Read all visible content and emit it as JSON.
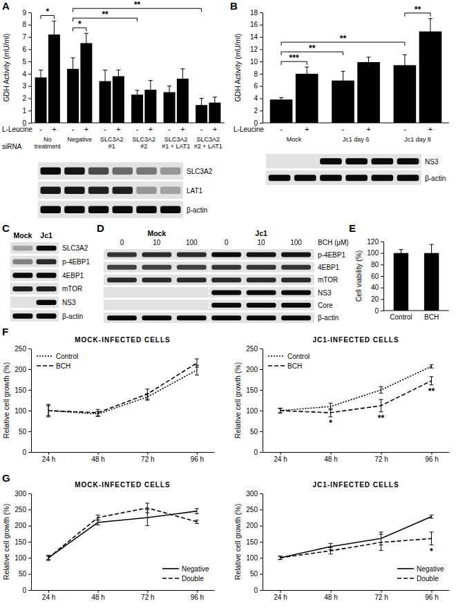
{
  "panel_labels": [
    "A",
    "B",
    "C",
    "D",
    "E",
    "F",
    "G"
  ],
  "chart_data": [
    {
      "type": "bar",
      "y_label": "GDH Activity (mU/ml)",
      "categories": [
        "-",
        "+",
        "-",
        "+",
        "-",
        "+",
        "-",
        "+",
        "-",
        "+",
        "-",
        "+"
      ],
      "category_row_label": "L-Leucine",
      "groups": [
        "No treatment",
        "Negative",
        "SLC3A2 #1",
        "SLC3A2 #2",
        "SLC3A2 #1 + LAT1",
        "SLC3A2 #2 + LAT1"
      ],
      "group_row_label": "siRNA",
      "series": [
        {
          "color": "#000000",
          "values": [
            3.7,
            7.2,
            4.4,
            6.5,
            3.4,
            3.8,
            2.3,
            2.7,
            2.5,
            3.6,
            1.45,
            1.65
          ],
          "errors": [
            0.6,
            1.1,
            0.9,
            0.8,
            0.9,
            0.5,
            0.35,
            0.75,
            0.5,
            0.8,
            0.55,
            0.45
          ]
        }
      ],
      "ylim": [
        0,
        9
      ],
      "yticks": [
        0,
        1,
        2,
        3,
        4,
        5,
        6,
        7,
        8,
        9
      ],
      "significance": [
        {
          "text": "*",
          "from": 0,
          "to": 1
        },
        {
          "text": "*",
          "from": 2,
          "to": 3
        },
        {
          "text": "**",
          "from": 2,
          "to": 6
        },
        {
          "text": "**",
          "from": 2,
          "to": 10
        }
      ]
    },
    {
      "type": "bar",
      "y_label": "GDH Activity (mU/ml)",
      "categories": [
        "-",
        "+",
        "-",
        "+",
        "-",
        "+"
      ],
      "category_row_label": "L-Leucine",
      "groups": [
        "Mock",
        "Jc1 day 6",
        "Jc1 day 8"
      ],
      "series": [
        {
          "color": "#000000",
          "values": [
            3.8,
            8.0,
            6.9,
            9.9,
            9.4,
            14.9
          ],
          "errors": [
            0.3,
            1.1,
            1.5,
            0.8,
            1.7,
            2.1
          ]
        }
      ],
      "ylim": [
        0,
        18
      ],
      "yticks": [
        0,
        2,
        4,
        6,
        8,
        10,
        12,
        14,
        16,
        18
      ],
      "significance": [
        {
          "text": "***",
          "from": 0,
          "to": 1
        },
        {
          "text": "**",
          "from": 0,
          "to": 2
        },
        {
          "text": "**",
          "from": 0,
          "to": 4
        },
        {
          "text": "**",
          "from": 4,
          "to": 5
        }
      ]
    },
    {
      "type": "bar",
      "y_label": "Cell viability (%)",
      "categories": [
        "Control",
        "BCH"
      ],
      "series": [
        {
          "color": "#000000",
          "values": [
            100,
            100
          ],
          "errors": [
            6,
            15
          ]
        }
      ],
      "ylim": [
        0,
        120
      ],
      "yticks": [
        0,
        20,
        40,
        60,
        80,
        100,
        120
      ]
    },
    {
      "type": "line",
      "title": "MOCK-INFECTED CELLS",
      "y_label": "Relative cell growth (%)",
      "categories": [
        "24 h",
        "48 h",
        "72 h",
        "96 h"
      ],
      "ylim": [
        0,
        250
      ],
      "yticks": [
        0,
        50,
        100,
        150,
        200,
        250
      ],
      "legend": "top-left",
      "series": [
        {
          "name": "Control",
          "color": "#000000",
          "line_style": "dotted",
          "values": [
            100,
            92,
            133,
            198
          ],
          "errors": [
            12,
            6,
            8,
            12
          ]
        },
        {
          "name": "BCH",
          "color": "#000000",
          "line_style": "dashed",
          "values": [
            100,
            95,
            140,
            215
          ],
          "errors": [
            15,
            8,
            12,
            10
          ]
        }
      ]
    },
    {
      "type": "line",
      "title": "JC1-INFECTED CELLS",
      "y_label": "Relative cell growth (%)",
      "categories": [
        "24 h",
        "48 h",
        "72 h",
        "96 h"
      ],
      "ylim": [
        0,
        250
      ],
      "yticks": [
        0,
        50,
        100,
        150,
        200,
        250
      ],
      "legend": "top-left",
      "series": [
        {
          "name": "Control",
          "color": "#000000",
          "line_style": "dotted",
          "values": [
            100,
            110,
            150,
            207
          ],
          "errors": [
            5,
            8,
            8,
            4
          ]
        },
        {
          "name": "BCH",
          "color": "#000000",
          "line_style": "dashed",
          "values": [
            100,
            95,
            112,
            172
          ],
          "errors": [
            6,
            10,
            15,
            10
          ]
        }
      ],
      "significance": [
        {
          "text": "*",
          "category": 1
        },
        {
          "text": "**",
          "category": 2
        },
        {
          "text": "**",
          "category": 3
        }
      ]
    },
    {
      "type": "line",
      "title": "MOCK-INFECTED CELLS",
      "y_label": "Relative cell growth (%)",
      "categories": [
        "24 h",
        "48 h",
        "72 h",
        "96 h"
      ],
      "ylim": [
        0,
        300
      ],
      "yticks": [
        0,
        50,
        100,
        150,
        200,
        250,
        300
      ],
      "legend": "bottom-right",
      "series": [
        {
          "name": "Negative",
          "color": "#000000",
          "line_style": "solid",
          "values": [
            100,
            210,
            225,
            245
          ],
          "errors": [
            5,
            8,
            25,
            8
          ]
        },
        {
          "name": "Double",
          "color": "#000000",
          "line_style": "dashed",
          "values": [
            100,
            225,
            255,
            212
          ],
          "errors": [
            8,
            8,
            15,
            5
          ]
        }
      ]
    },
    {
      "type": "line",
      "title": "JC1-INFECTED CELLS",
      "y_label": "Relative cell growth (%)",
      "categories": [
        "24 h",
        "48 h",
        "72 h",
        "96 h"
      ],
      "ylim": [
        0,
        300
      ],
      "yticks": [
        0,
        50,
        100,
        150,
        200,
        250,
        300
      ],
      "legend": "bottom-right",
      "series": [
        {
          "name": "Negative",
          "color": "#000000",
          "line_style": "solid",
          "values": [
            100,
            135,
            160,
            228
          ],
          "errors": [
            5,
            10,
            20,
            5
          ]
        },
        {
          "name": "Double",
          "color": "#000000",
          "line_style": "dashed",
          "values": [
            100,
            122,
            148,
            160
          ],
          "errors": [
            5,
            10,
            25,
            20
          ]
        }
      ],
      "significance": [
        {
          "text": "*",
          "category": 3
        }
      ]
    }
  ],
  "blots": [
    {
      "rows": [
        {
          "name": "SLC3A2",
          "bands": [
            1.0,
            0.95,
            0.7,
            0.55,
            0.5,
            0.35
          ]
        },
        {
          "name": "LAT1",
          "bands": [
            0.95,
            0.95,
            0.9,
            0.9,
            0.35,
            0.3
          ]
        },
        {
          "name": "β-actin",
          "bands": [
            1.0,
            1.0,
            1.0,
            1.0,
            1.0,
            1.0
          ]
        }
      ]
    },
    {
      "rows": [
        {
          "name": "NS3",
          "bands": [
            0,
            0,
            1.0,
            1.0,
            1.0,
            1.0
          ]
        },
        {
          "name": "β-actin",
          "bands": [
            1.0,
            1.0,
            1.0,
            1.0,
            1.0,
            1.0
          ]
        }
      ]
    },
    {
      "lanes": [
        "Mock",
        "Jc1"
      ],
      "rows": [
        {
          "name": "SLC3A2",
          "bands": [
            0.3,
            1.0
          ]
        },
        {
          "name": "p-4EBP1",
          "bands": [
            0.45,
            0.85
          ]
        },
        {
          "name": "4EBP1",
          "bands": [
            1.0,
            1.0
          ]
        },
        {
          "name": "mTOR",
          "bands": [
            0.9,
            0.9
          ]
        },
        {
          "name": "NS3",
          "bands": [
            0,
            1.0
          ]
        },
        {
          "name": "β-actin",
          "bands": [
            1.0,
            1.0
          ]
        }
      ]
    },
    {
      "groups": [
        "Mock",
        "Jc1"
      ],
      "lanes": [
        "0",
        "10",
        "100",
        "0",
        "10",
        "100"
      ],
      "lane_label": "BCH (μM)",
      "rows": [
        {
          "name": "p-4EBP1",
          "bands": [
            0.8,
            0.85,
            0.85,
            1.0,
            0.95,
            0.95
          ]
        },
        {
          "name": "4EBP1",
          "bands": [
            0.75,
            0.75,
            0.75,
            0.8,
            0.8,
            0.8
          ]
        },
        {
          "name": "mTOR",
          "bands": [
            0.85,
            0.85,
            0.85,
            0.85,
            0.85,
            0.85
          ]
        },
        {
          "name": "NS3",
          "bands": [
            0,
            0,
            0,
            1.0,
            1.0,
            1.0
          ]
        },
        {
          "name": "Core",
          "bands": [
            0,
            0,
            0,
            1.0,
            1.0,
            1.0
          ]
        },
        {
          "name": "β-actin",
          "bands": [
            1.0,
            1.0,
            1.0,
            1.0,
            1.0,
            1.0
          ]
        }
      ]
    }
  ]
}
